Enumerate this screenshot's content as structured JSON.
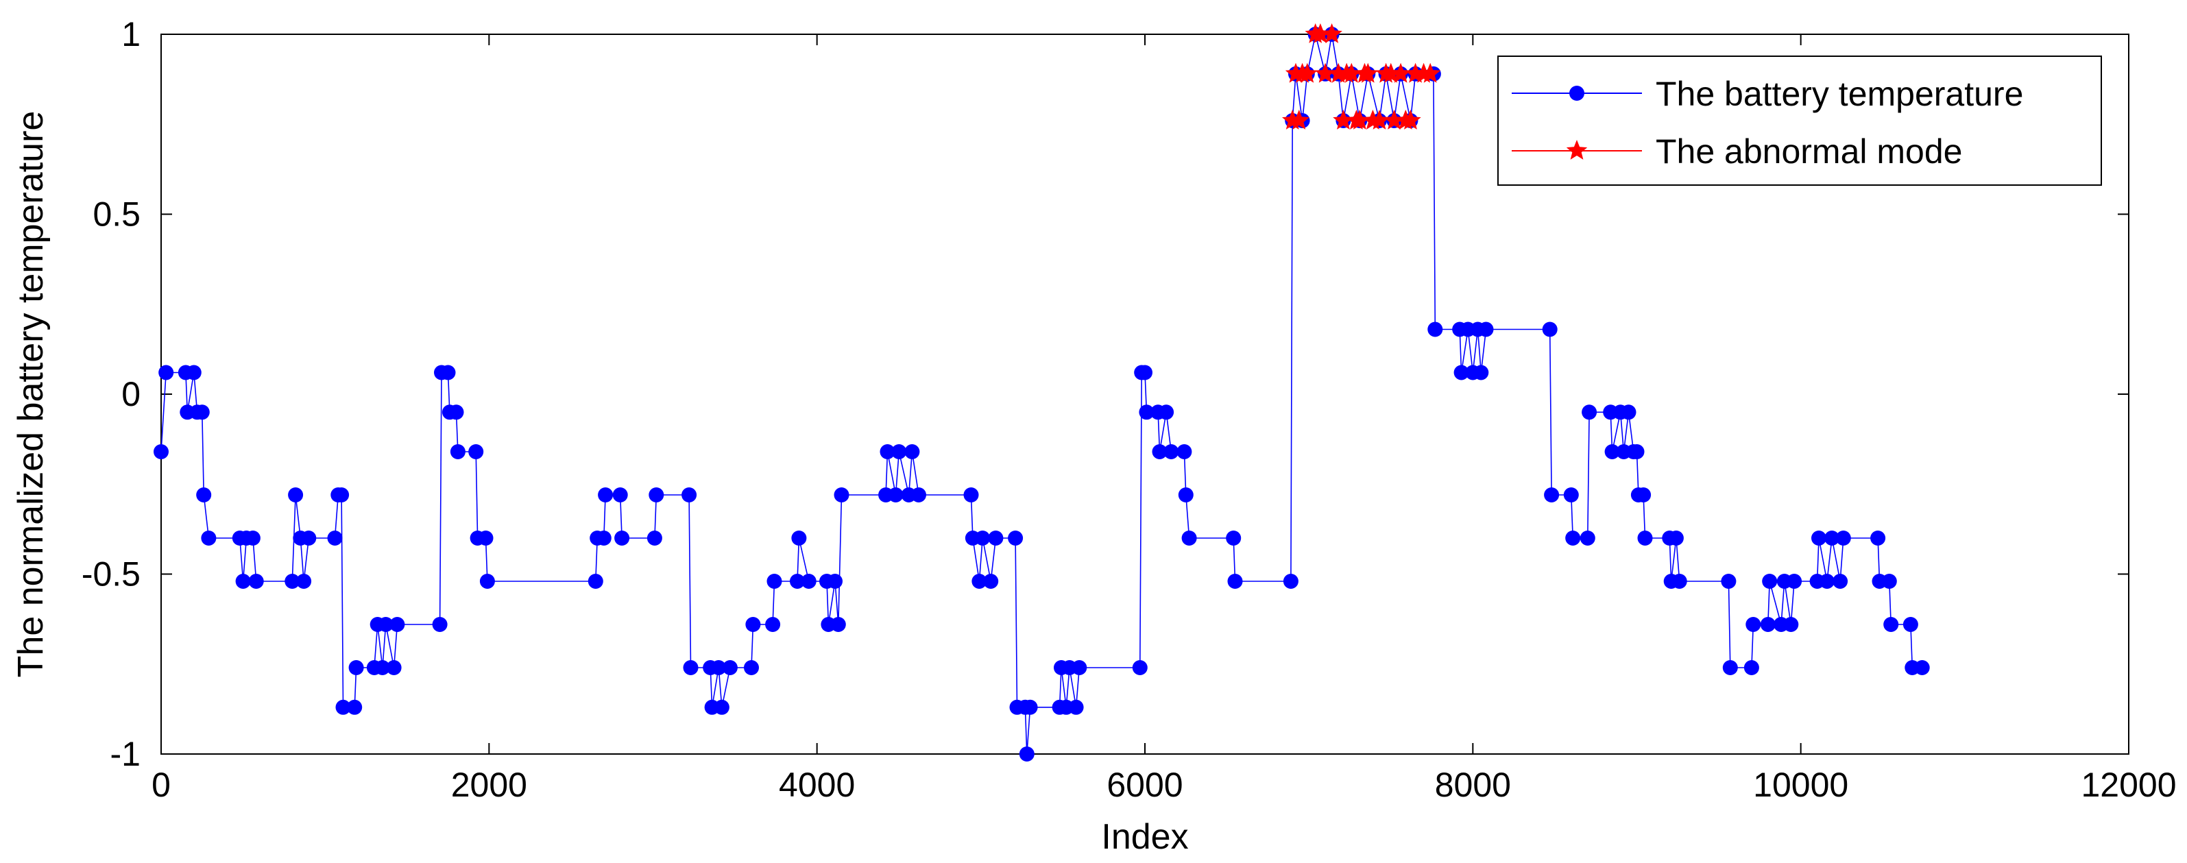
{
  "chart_data": {
    "type": "line",
    "title": "",
    "xlabel": "Index",
    "ylabel": "The normalized battery temperature",
    "xlim": [
      0,
      12000
    ],
    "ylim": [
      -1,
      1
    ],
    "x_ticks": [
      "0",
      "2000",
      "4000",
      "6000",
      "8000",
      "10000",
      "12000"
    ],
    "y_ticks": [
      "-1",
      "-0.5",
      "0",
      "0.5",
      "1"
    ],
    "grid": false,
    "legend_position": "top-right",
    "series": [
      {
        "name": "The battery temperature",
        "color": "#0000ff",
        "marker": "circle",
        "points": [
          [
            0,
            -0.16
          ],
          [
            30,
            0.06
          ],
          [
            150,
            0.06
          ],
          [
            160,
            -0.05
          ],
          [
            200,
            0.06
          ],
          [
            220,
            -0.05
          ],
          [
            250,
            -0.05
          ],
          [
            260,
            -0.28
          ],
          [
            290,
            -0.4
          ],
          [
            480,
            -0.4
          ],
          [
            500,
            -0.52
          ],
          [
            520,
            -0.4
          ],
          [
            560,
            -0.4
          ],
          [
            580,
            -0.52
          ],
          [
            800,
            -0.52
          ],
          [
            820,
            -0.28
          ],
          [
            850,
            -0.4
          ],
          [
            870,
            -0.52
          ],
          [
            900,
            -0.4
          ],
          [
            1060,
            -0.4
          ],
          [
            1080,
            -0.28
          ],
          [
            1100,
            -0.28
          ],
          [
            1110,
            -0.87
          ],
          [
            1180,
            -0.87
          ],
          [
            1190,
            -0.76
          ],
          [
            1300,
            -0.76
          ],
          [
            1320,
            -0.64
          ],
          [
            1350,
            -0.76
          ],
          [
            1370,
            -0.64
          ],
          [
            1420,
            -0.76
          ],
          [
            1440,
            -0.64
          ],
          [
            1700,
            -0.64
          ],
          [
            1710,
            0.06
          ],
          [
            1750,
            0.06
          ],
          [
            1760,
            -0.05
          ],
          [
            1800,
            -0.05
          ],
          [
            1810,
            -0.16
          ],
          [
            1920,
            -0.16
          ],
          [
            1930,
            -0.4
          ],
          [
            1980,
            -0.4
          ],
          [
            1990,
            -0.52
          ],
          [
            2650,
            -0.52
          ],
          [
            2660,
            -0.4
          ],
          [
            2700,
            -0.4
          ],
          [
            2710,
            -0.28
          ],
          [
            2800,
            -0.28
          ],
          [
            2810,
            -0.4
          ],
          [
            3010,
            -0.4
          ],
          [
            3020,
            -0.28
          ],
          [
            3220,
            -0.28
          ],
          [
            3230,
            -0.76
          ],
          [
            3350,
            -0.76
          ],
          [
            3360,
            -0.87
          ],
          [
            3400,
            -0.76
          ],
          [
            3420,
            -0.87
          ],
          [
            3470,
            -0.76
          ],
          [
            3600,
            -0.76
          ],
          [
            3610,
            -0.64
          ],
          [
            3730,
            -0.64
          ],
          [
            3740,
            -0.52
          ],
          [
            3880,
            -0.52
          ],
          [
            3890,
            -0.4
          ],
          [
            3950,
            -0.52
          ],
          [
            4060,
            -0.52
          ],
          [
            4070,
            -0.64
          ],
          [
            4110,
            -0.52
          ],
          [
            4130,
            -0.64
          ],
          [
            4150,
            -0.28
          ],
          [
            4420,
            -0.28
          ],
          [
            4430,
            -0.16
          ],
          [
            4480,
            -0.28
          ],
          [
            4500,
            -0.16
          ],
          [
            4560,
            -0.28
          ],
          [
            4580,
            -0.16
          ],
          [
            4620,
            -0.28
          ],
          [
            4940,
            -0.28
          ],
          [
            4950,
            -0.4
          ],
          [
            4990,
            -0.52
          ],
          [
            5010,
            -0.4
          ],
          [
            5060,
            -0.52
          ],
          [
            5090,
            -0.4
          ],
          [
            5210,
            -0.4
          ],
          [
            5220,
            -0.87
          ],
          [
            5270,
            -0.87
          ],
          [
            5280,
            -1.0
          ],
          [
            5300,
            -0.87
          ],
          [
            5480,
            -0.87
          ],
          [
            5490,
            -0.76
          ],
          [
            5520,
            -0.87
          ],
          [
            5540,
            -0.76
          ],
          [
            5580,
            -0.87
          ],
          [
            5600,
            -0.76
          ],
          [
            5970,
            -0.76
          ],
          [
            5980,
            0.06
          ],
          [
            6000,
            0.06
          ],
          [
            6010,
            -0.05
          ],
          [
            6080,
            -0.05
          ],
          [
            6090,
            -0.16
          ],
          [
            6130,
            -0.05
          ],
          [
            6160,
            -0.16
          ],
          [
            6240,
            -0.16
          ],
          [
            6250,
            -0.28
          ],
          [
            6270,
            -0.4
          ],
          [
            6540,
            -0.4
          ],
          [
            6550,
            -0.52
          ],
          [
            6890,
            -0.52
          ],
          [
            6900,
            0.76
          ],
          [
            6920,
            0.89
          ],
          [
            6960,
            0.76
          ],
          [
            6990,
            0.89
          ],
          [
            7040,
            1.0
          ],
          [
            7100,
            0.89
          ],
          [
            7140,
            1.0
          ],
          [
            7180,
            0.89
          ],
          [
            7210,
            0.76
          ],
          [
            7260,
            0.89
          ],
          [
            7310,
            0.76
          ],
          [
            7360,
            0.89
          ],
          [
            7430,
            0.76
          ],
          [
            7470,
            0.89
          ],
          [
            7520,
            0.76
          ],
          [
            7560,
            0.89
          ],
          [
            7620,
            0.76
          ],
          [
            7650,
            0.89
          ],
          [
            7760,
            0.89
          ],
          [
            7770,
            0.18
          ],
          [
            7920,
            0.18
          ],
          [
            7930,
            0.06
          ],
          [
            7970,
            0.18
          ],
          [
            8000,
            0.06
          ],
          [
            8030,
            0.18
          ],
          [
            8050,
            0.06
          ],
          [
            8080,
            0.18
          ],
          [
            8470,
            0.18
          ],
          [
            8480,
            -0.28
          ],
          [
            8600,
            -0.28
          ],
          [
            8610,
            -0.4
          ],
          [
            8700,
            -0.4
          ],
          [
            8710,
            -0.05
          ],
          [
            8840,
            -0.05
          ],
          [
            8850,
            -0.16
          ],
          [
            8900,
            -0.05
          ],
          [
            8920,
            -0.16
          ],
          [
            8950,
            -0.05
          ],
          [
            8980,
            -0.16
          ],
          [
            9000,
            -0.16
          ],
          [
            9010,
            -0.28
          ],
          [
            9040,
            -0.28
          ],
          [
            9050,
            -0.4
          ],
          [
            9200,
            -0.4
          ],
          [
            9210,
            -0.52
          ],
          [
            9240,
            -0.4
          ],
          [
            9260,
            -0.52
          ],
          [
            9560,
            -0.52
          ],
          [
            9570,
            -0.76
          ],
          [
            9700,
            -0.76
          ],
          [
            9710,
            -0.64
          ],
          [
            9800,
            -0.64
          ],
          [
            9810,
            -0.52
          ],
          [
            9880,
            -0.64
          ],
          [
            9900,
            -0.52
          ],
          [
            9940,
            -0.64
          ],
          [
            9960,
            -0.52
          ],
          [
            10100,
            -0.52
          ],
          [
            10110,
            -0.4
          ],
          [
            10160,
            -0.52
          ],
          [
            10190,
            -0.4
          ],
          [
            10240,
            -0.52
          ],
          [
            10260,
            -0.4
          ],
          [
            10470,
            -0.4
          ],
          [
            10480,
            -0.52
          ],
          [
            10540,
            -0.52
          ],
          [
            10550,
            -0.64
          ],
          [
            10670,
            -0.64
          ],
          [
            10680,
            -0.76
          ],
          [
            10740,
            -0.76
          ]
        ]
      },
      {
        "name": "The abnormal mode",
        "color": "#ff0000",
        "marker": "star",
        "points": [
          [
            6900,
            0.76
          ],
          [
            6920,
            0.89
          ],
          [
            6940,
            0.76
          ],
          [
            6960,
            0.89
          ],
          [
            6990,
            0.89
          ],
          [
            7040,
            1.0
          ],
          [
            7070,
            1.0
          ],
          [
            7100,
            0.89
          ],
          [
            7140,
            1.0
          ],
          [
            7180,
            0.89
          ],
          [
            7210,
            0.76
          ],
          [
            7230,
            0.89
          ],
          [
            7260,
            0.89
          ],
          [
            7290,
            0.76
          ],
          [
            7310,
            0.76
          ],
          [
            7340,
            0.89
          ],
          [
            7360,
            0.89
          ],
          [
            7390,
            0.76
          ],
          [
            7430,
            0.76
          ],
          [
            7470,
            0.89
          ],
          [
            7500,
            0.89
          ],
          [
            7520,
            0.76
          ],
          [
            7560,
            0.89
          ],
          [
            7590,
            0.76
          ],
          [
            7620,
            0.76
          ],
          [
            7650,
            0.89
          ],
          [
            7700,
            0.89
          ],
          [
            7740,
            0.89
          ]
        ]
      }
    ]
  }
}
